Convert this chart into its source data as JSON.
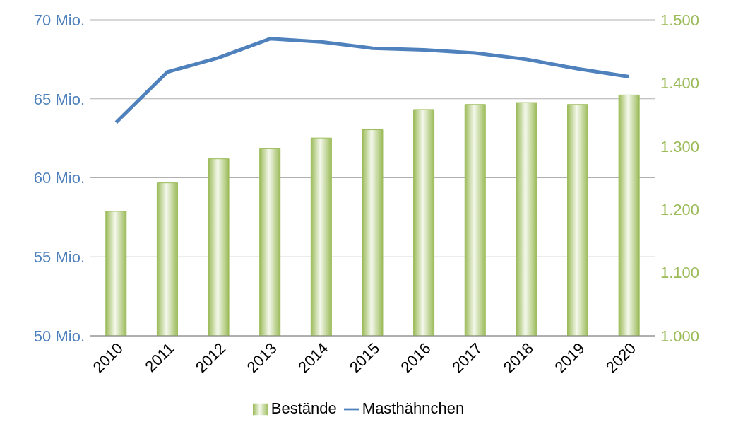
{
  "chart_data": {
    "type": "bar",
    "categories": [
      "2010",
      "2011",
      "2012",
      "2013",
      "2014",
      "2015",
      "2016",
      "2017",
      "2018",
      "2019",
      "2020"
    ],
    "series": [
      {
        "name": "Bestände",
        "axis": "y2",
        "color": "#9bbb59",
        "values": [
          1197,
          1242,
          1280,
          1296,
          1313,
          1326,
          1358,
          1366,
          1369,
          1366,
          1381
        ]
      },
      {
        "name": "Masthähnchen",
        "type": "line",
        "axis": "y",
        "color": "#4f81bd",
        "values": [
          63.5,
          66.7,
          67.6,
          68.8,
          68.6,
          68.2,
          68.1,
          67.9,
          67.5,
          66.9,
          66.4
        ]
      }
    ],
    "ylim": [
      50,
      70
    ],
    "yticks": [
      {
        "value": 50,
        "label": "50 Mio."
      },
      {
        "value": 55,
        "label": "55 Mio."
      },
      {
        "value": 60,
        "label": "60 Mio."
      },
      {
        "value": 65,
        "label": "65 Mio."
      },
      {
        "value": 70,
        "label": "70 Mio."
      }
    ],
    "y2lim": [
      1000,
      1500
    ],
    "y2ticks": [
      {
        "value": 1000,
        "label": "1.000"
      },
      {
        "value": 1100,
        "label": "1.100"
      },
      {
        "value": 1200,
        "label": "1.200"
      },
      {
        "value": 1300,
        "label": "1.300"
      },
      {
        "value": 1400,
        "label": "1.400"
      },
      {
        "value": 1500,
        "label": "1.500"
      }
    ],
    "grid": "y",
    "legend": "bottom",
    "marker": "none"
  }
}
